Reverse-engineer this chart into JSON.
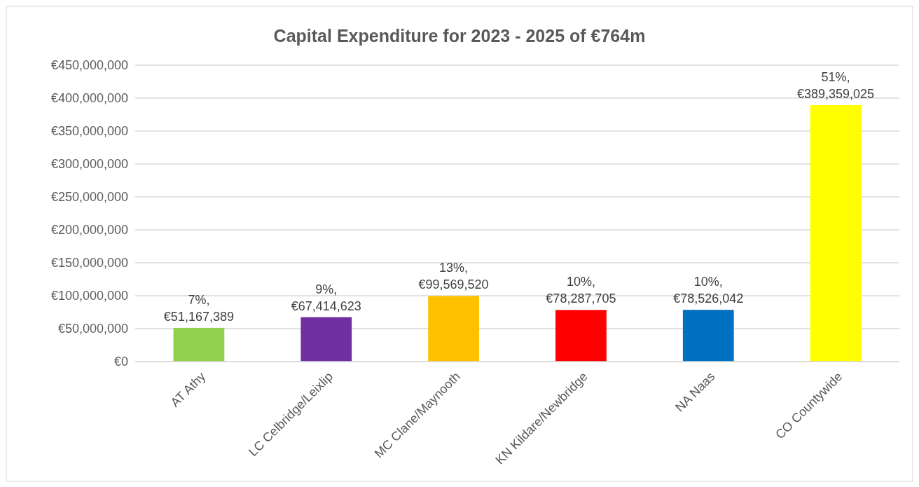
{
  "chart_data": {
    "type": "bar",
    "title": "Capital Expenditure for 2023 - 2025 of €764m",
    "categories": [
      "AT Athy",
      "LC Celbridge/Leixlip",
      "MC Clane/Maynooth",
      "KN Kildare/Newbridge",
      "NA Naas",
      "CO Countywide"
    ],
    "values": [
      51167389,
      67414623,
      99569520,
      78287705,
      78526042,
      389359025
    ],
    "colors": [
      "#92d050",
      "#7030a0",
      "#ffc000",
      "#ff0000",
      "#0070c0",
      "#ffff00"
    ],
    "value_labels": [
      "7%, €51,167,389",
      "9%, €67,414,623",
      "13%, €99,569,520",
      "10%, €78,287,705",
      "10%, €78,526,042",
      "51%, €389,359,025"
    ],
    "ylim": [
      0,
      450000000
    ],
    "yticks": [
      {
        "value": 0,
        "label": "€0"
      },
      {
        "value": 50000000,
        "label": "€50,000,000"
      },
      {
        "value": 100000000,
        "label": "€100,000,000"
      },
      {
        "value": 150000000,
        "label": "€150,000,000"
      },
      {
        "value": 200000000,
        "label": "€200,000,000"
      },
      {
        "value": 250000000,
        "label": "€250,000,000"
      },
      {
        "value": 300000000,
        "label": "€300,000,000"
      },
      {
        "value": 350000000,
        "label": "€350,000,000"
      },
      {
        "value": 400000000,
        "label": "€400,000,000"
      },
      {
        "value": 450000000,
        "label": "€450,000,000"
      }
    ],
    "grid": "y"
  }
}
